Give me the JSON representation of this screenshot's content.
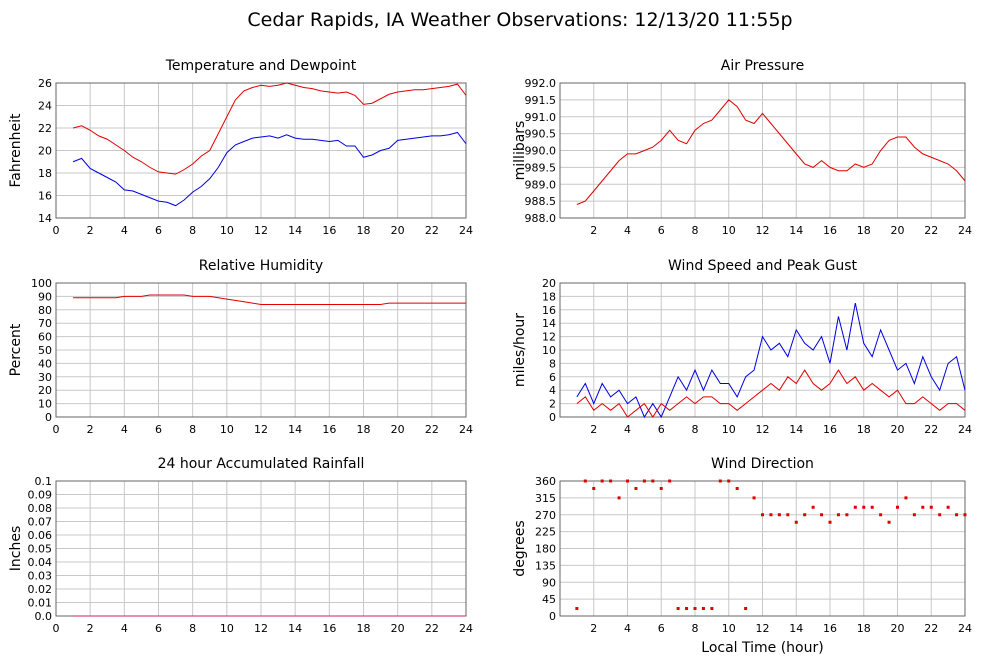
{
  "title": "Cedar Rapids, IA Weather Observations: 12/13/20 11:55p",
  "chart_data": [
    {
      "type": "line",
      "title": "Temperature and Dewpoint",
      "y_label": "Fahrenheit",
      "x": [
        1,
        1.5,
        2,
        2.5,
        3,
        3.5,
        4,
        4.5,
        5,
        5.5,
        6,
        6.5,
        7,
        7.5,
        8,
        8.5,
        9,
        9.5,
        10,
        10.5,
        11,
        11.5,
        12,
        12.5,
        13,
        13.5,
        14,
        14.5,
        15,
        15.5,
        16,
        16.5,
        17,
        17.5,
        18,
        18.5,
        19,
        19.5,
        20,
        20.5,
        21,
        21.5,
        22,
        22.5,
        23,
        23.5,
        24
      ],
      "xlim": [
        0,
        24
      ],
      "xticks": [
        0,
        2,
        4,
        6,
        8,
        10,
        12,
        14,
        16,
        18,
        20,
        22,
        24
      ],
      "ylim": [
        14,
        26
      ],
      "yticks": [
        14,
        16,
        18,
        20,
        22,
        24,
        26
      ],
      "grid": true,
      "series": [
        {
          "color": "#e00000",
          "values": [
            22,
            22.2,
            21.8,
            21.3,
            21,
            20.5,
            20,
            19.4,
            19,
            18.5,
            18.1,
            18,
            17.9,
            18.3,
            18.8,
            19.5,
            20,
            21.5,
            23,
            24.5,
            25.3,
            25.6,
            25.8,
            25.7,
            25.8,
            26,
            25.8,
            25.6,
            25.5,
            25.3,
            25.2,
            25.1,
            25.2,
            24.9,
            24.1,
            24.2,
            24.6,
            25,
            25.2,
            25.3,
            25.4,
            25.4,
            25.5,
            25.6,
            25.7,
            25.9,
            24.9
          ]
        },
        {
          "color": "#0000e0",
          "values": [
            19,
            19.3,
            18.4,
            18,
            17.6,
            17.2,
            16.5,
            16.4,
            16.1,
            15.8,
            15.5,
            15.4,
            15.1,
            15.6,
            16.3,
            16.8,
            17.5,
            18.5,
            19.8,
            20.5,
            20.8,
            21.1,
            21.2,
            21.3,
            21.1,
            21.4,
            21.1,
            21,
            21,
            20.9,
            20.8,
            20.9,
            20.4,
            20.4,
            19.4,
            19.6,
            20,
            20.2,
            20.9,
            21,
            21.1,
            21.2,
            21.3,
            21.3,
            21.4,
            21.6,
            20.6
          ]
        }
      ]
    },
    {
      "type": "line",
      "title": "Air Pressure",
      "y_label": "millibars",
      "x": [
        1,
        1.5,
        2,
        2.5,
        3,
        3.5,
        4,
        4.5,
        5,
        5.5,
        6,
        6.5,
        7,
        7.5,
        8,
        8.5,
        9,
        9.5,
        10,
        10.5,
        11,
        11.5,
        12,
        12.5,
        13,
        13.5,
        14,
        14.5,
        15,
        15.5,
        16,
        16.5,
        17,
        17.5,
        18,
        18.5,
        19,
        19.5,
        20,
        20.5,
        21,
        21.5,
        22,
        22.5,
        23,
        23.5,
        24
      ],
      "xlim": [
        0,
        24
      ],
      "xticks": [
        2,
        4,
        6,
        8,
        10,
        12,
        14,
        16,
        18,
        20,
        22,
        24
      ],
      "ylim": [
        988,
        992
      ],
      "yticks": [
        {
          "value": 988,
          "label": "988.0"
        },
        988.5,
        {
          "value": 989,
          "label": "989.0"
        },
        989.5,
        {
          "value": 990,
          "label": "990.0"
        },
        990.5,
        {
          "value": 991,
          "label": "991.0"
        },
        991.5,
        {
          "value": 992,
          "label": "992.0"
        }
      ],
      "grid": true,
      "series": [
        {
          "color": "#e00000",
          "values": [
            988.4,
            988.5,
            988.8,
            989.1,
            989.4,
            989.7,
            989.9,
            989.9,
            990,
            990.1,
            990.3,
            990.6,
            990.3,
            990.2,
            990.6,
            990.8,
            990.9,
            991.2,
            991.5,
            991.3,
            990.9,
            990.8,
            991.1,
            990.8,
            990.5,
            990.2,
            989.9,
            989.6,
            989.5,
            989.7,
            989.5,
            989.4,
            989.4,
            989.6,
            989.5,
            989.6,
            990,
            990.3,
            990.4,
            990.4,
            990.1,
            989.9,
            989.8,
            989.7,
            989.6,
            989.4,
            989.1
          ]
        }
      ]
    },
    {
      "type": "line",
      "title": "Relative Humidity",
      "y_label": "Percent",
      "x": [
        1,
        1.5,
        2,
        2.5,
        3,
        3.5,
        4,
        4.5,
        5,
        5.5,
        6,
        6.5,
        7,
        7.5,
        8,
        8.5,
        9,
        9.5,
        10,
        10.5,
        11,
        11.5,
        12,
        12.5,
        13,
        13.5,
        14,
        14.5,
        15,
        15.5,
        16,
        16.5,
        17,
        17.5,
        18,
        18.5,
        19,
        19.5,
        20,
        20.5,
        21,
        21.5,
        22,
        22.5,
        23,
        23.5,
        24
      ],
      "xlim": [
        0,
        24
      ],
      "xticks": [
        0,
        2,
        4,
        6,
        8,
        10,
        12,
        14,
        16,
        18,
        20,
        22,
        24
      ],
      "ylim": [
        0,
        100
      ],
      "yticks": [
        0,
        10,
        20,
        30,
        40,
        50,
        60,
        70,
        80,
        90,
        100
      ],
      "grid": true,
      "series": [
        {
          "color": "#e00000",
          "values": [
            89,
            89,
            89,
            89,
            89,
            89,
            90,
            90,
            90,
            91,
            91,
            91,
            91,
            91,
            90,
            90,
            90,
            89,
            88,
            87,
            86,
            85,
            84,
            84,
            84,
            84,
            84,
            84,
            84,
            84,
            84,
            84,
            84,
            84,
            84,
            84,
            84,
            85,
            85,
            85,
            85,
            85,
            85,
            85,
            85,
            85,
            85
          ]
        }
      ]
    },
    {
      "type": "line",
      "title": "Wind Speed and Peak Gust",
      "y_label": "miles/hour",
      "x": [
        1,
        1.5,
        2,
        2.5,
        3,
        3.5,
        4,
        4.5,
        5,
        5.5,
        6,
        6.5,
        7,
        7.5,
        8,
        8.5,
        9,
        9.5,
        10,
        10.5,
        11,
        11.5,
        12,
        12.5,
        13,
        13.5,
        14,
        14.5,
        15,
        15.5,
        16,
        16.5,
        17,
        17.5,
        18,
        18.5,
        19,
        19.5,
        20,
        20.5,
        21,
        21.5,
        22,
        22.5,
        23,
        23.5,
        24
      ],
      "xlim": [
        0,
        24
      ],
      "xticks": [
        2,
        4,
        6,
        8,
        10,
        12,
        14,
        16,
        18,
        20,
        22,
        24
      ],
      "ylim": [
        0,
        20
      ],
      "yticks": [
        0,
        2,
        4,
        6,
        8,
        10,
        12,
        14,
        16,
        18,
        20
      ],
      "grid": true,
      "series": [
        {
          "color": "#0000e0",
          "values": [
            3,
            5,
            2,
            5,
            3,
            4,
            2,
            3,
            0,
            2,
            0,
            3,
            6,
            4,
            7,
            4,
            7,
            5,
            5,
            3,
            6,
            7,
            12,
            10,
            11,
            9,
            13,
            11,
            10,
            12,
            8,
            15,
            10,
            17,
            11,
            9,
            13,
            10,
            7,
            8,
            5,
            9,
            6,
            4,
            8,
            9,
            4
          ]
        },
        {
          "color": "#e00000",
          "values": [
            2,
            3,
            1,
            2,
            1,
            2,
            0,
            1,
            2,
            0,
            2,
            1,
            2,
            3,
            2,
            3,
            3,
            2,
            2,
            1,
            2,
            3,
            4,
            5,
            4,
            6,
            5,
            7,
            5,
            4,
            5,
            7,
            5,
            6,
            4,
            5,
            4,
            3,
            4,
            2,
            2,
            3,
            2,
            1,
            2,
            2,
            1
          ]
        }
      ]
    },
    {
      "type": "line",
      "title": "24 hour Accumulated Rainfall",
      "y_label": "Inches",
      "x": [
        1,
        1.5,
        2,
        2.5,
        3,
        3.5,
        4,
        4.5,
        5,
        5.5,
        6,
        6.5,
        7,
        7.5,
        8,
        8.5,
        9,
        9.5,
        10,
        10.5,
        11,
        11.5,
        12,
        12.5,
        13,
        13.5,
        14,
        14.5,
        15,
        15.5,
        16,
        16.5,
        17,
        17.5,
        18,
        18.5,
        19,
        19.5,
        20,
        20.5,
        21,
        21.5,
        22,
        22.5,
        23,
        23.5,
        24
      ],
      "xlim": [
        0,
        24
      ],
      "xticks": [
        0,
        2,
        4,
        6,
        8,
        10,
        12,
        14,
        16,
        18,
        20,
        22,
        24
      ],
      "ylim": [
        0,
        0.1
      ],
      "yticks": [
        {
          "value": 0,
          "label": "0.0"
        },
        0.01,
        0.02,
        0.03,
        0.04,
        0.05,
        0.06,
        0.07,
        0.08,
        0.09,
        0.1
      ],
      "grid": true,
      "series": [
        {
          "color": "#d0205a",
          "values": [
            0,
            0,
            0,
            0,
            0,
            0,
            0,
            0,
            0,
            0,
            0,
            0,
            0,
            0,
            0,
            0,
            0,
            0,
            0,
            0,
            0,
            0,
            0,
            0,
            0,
            0,
            0,
            0,
            0,
            0,
            0,
            0,
            0,
            0,
            0,
            0,
            0,
            0,
            0,
            0,
            0,
            0,
            0,
            0,
            0,
            0,
            0
          ]
        }
      ]
    },
    {
      "type": "scatter",
      "title": "Wind Direction",
      "y_label": "degrees",
      "x_label": "Local Time (hour)",
      "x": [
        1,
        1.5,
        2,
        2.5,
        3,
        3.5,
        4,
        4.5,
        5,
        5.5,
        6,
        6.5,
        7,
        7.5,
        8,
        8.5,
        9,
        9.5,
        10,
        10.5,
        11,
        11.5,
        12,
        12.5,
        13,
        13.5,
        14,
        14.5,
        15,
        15.5,
        16,
        16.5,
        17,
        17.5,
        18,
        18.5,
        19,
        19.5,
        20,
        20.5,
        21,
        21.5,
        22,
        22.5,
        23,
        23.5,
        24
      ],
      "xlim": [
        0,
        24
      ],
      "xticks": [
        2,
        4,
        6,
        8,
        10,
        12,
        14,
        16,
        18,
        20,
        22,
        24
      ],
      "ylim": [
        0,
        360
      ],
      "yticks": [
        0,
        45,
        90,
        135,
        180,
        225,
        270,
        315,
        360
      ],
      "grid": true,
      "series": [
        {
          "color": "#e00000",
          "values": [
            20,
            360,
            340,
            360,
            360,
            315,
            360,
            340,
            360,
            360,
            340,
            360,
            20,
            20,
            20,
            20,
            20,
            360,
            360,
            340,
            20,
            315,
            270,
            270,
            270,
            270,
            250,
            270,
            290,
            270,
            250,
            270,
            270,
            290,
            290,
            290,
            270,
            250,
            290,
            315,
            270,
            290,
            290,
            270,
            290,
            270,
            270
          ]
        }
      ]
    }
  ]
}
